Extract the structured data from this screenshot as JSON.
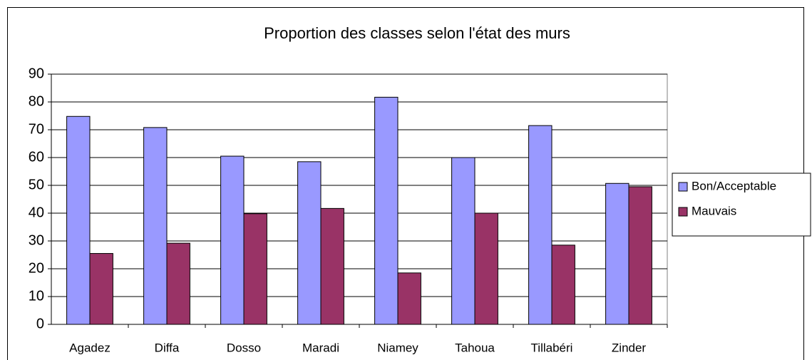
{
  "chart_data": {
    "type": "bar",
    "title": "Proportion des classes selon l'état des murs",
    "categories": [
      "Agadez",
      "Diffa",
      "Dosso",
      "Maradi",
      "Niamey",
      "Tahoua",
      "Tillabéri",
      "Zinder"
    ],
    "series": [
      {
        "name": "Bon/Acceptable",
        "color": "#9999ff",
        "values": [
          74.8,
          70.8,
          60.5,
          58.5,
          81.7,
          60,
          71.5,
          50.7
        ]
      },
      {
        "name": "Mauvais",
        "color": "#993366",
        "values": [
          25.5,
          29.2,
          39.8,
          41.7,
          18.5,
          40,
          28.5,
          49.5
        ]
      }
    ],
    "ylim": [
      0,
      90
    ],
    "yticks": [
      0,
      10,
      20,
      30,
      40,
      50,
      60,
      70,
      80,
      90
    ],
    "grid": true,
    "legend": "right"
  }
}
